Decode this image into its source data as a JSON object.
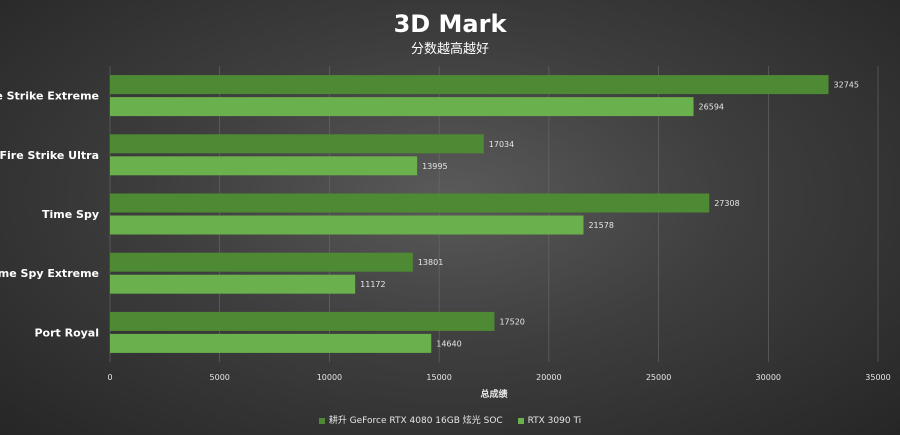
{
  "chart_data": {
    "type": "bar",
    "orientation": "horizontal",
    "title": "3D Mark",
    "subtitle": "分数越高越好",
    "categories": [
      "Fire Strike Extreme",
      "Fire Strike Ultra",
      "Time Spy",
      "Time Spy Extreme",
      "Port Royal"
    ],
    "series": [
      {
        "name": "耕升 GeForce RTX 4080 16GB 炫光 SOC",
        "color": "#4e8a34",
        "values": [
          32745,
          17034,
          27308,
          13801,
          17520
        ]
      },
      {
        "name": "RTX 3090 Ti",
        "color": "#6ab04c",
        "values": [
          26594,
          13995,
          21578,
          11172,
          14640
        ]
      }
    ],
    "xlabel": "总成绩",
    "xlim": [
      0,
      35000
    ],
    "xticks": [
      0,
      5000,
      10000,
      15000,
      20000,
      25000,
      30000,
      35000
    ],
    "grid": true,
    "legend_position": "bottom"
  }
}
